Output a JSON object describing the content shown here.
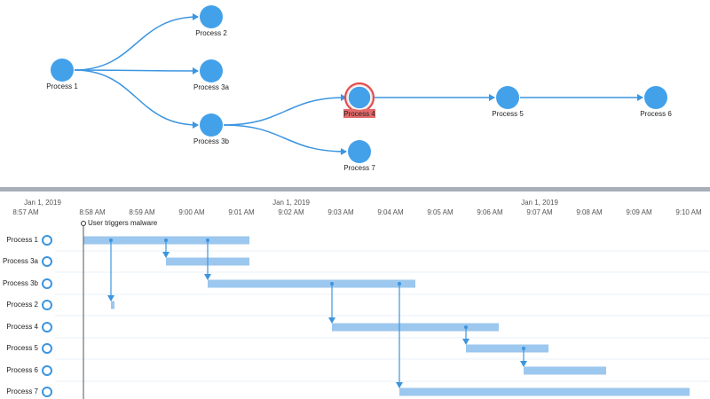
{
  "graph": {
    "nodes": [
      {
        "label": "Process 1"
      },
      {
        "label": "Process 2"
      },
      {
        "label": "Process 3a"
      },
      {
        "label": "Process 3b"
      },
      {
        "label": "Process 4"
      },
      {
        "label": "Process 5"
      },
      {
        "label": "Process 6"
      },
      {
        "label": "Process 7"
      }
    ]
  },
  "timeline": {
    "dates": [
      "Jan 1, 2019",
      "Jan 1, 2019",
      "Jan 1, 2019"
    ],
    "times": [
      "8:57 AM",
      "8:58 AM",
      "8:59 AM",
      "9:00 AM",
      "9:01 AM",
      "9:02 AM",
      "9:03 AM",
      "9:04 AM",
      "9:05 AM",
      "9:06 AM",
      "9:07 AM",
      "9:08 AM",
      "9:09 AM",
      "9:10 AM"
    ],
    "marker": "User triggers malware",
    "rows": [
      "Process 1",
      "Process 3a",
      "Process 3b",
      "Process 2",
      "Process 4",
      "Process 5",
      "Process 6",
      "Process 7"
    ]
  }
}
